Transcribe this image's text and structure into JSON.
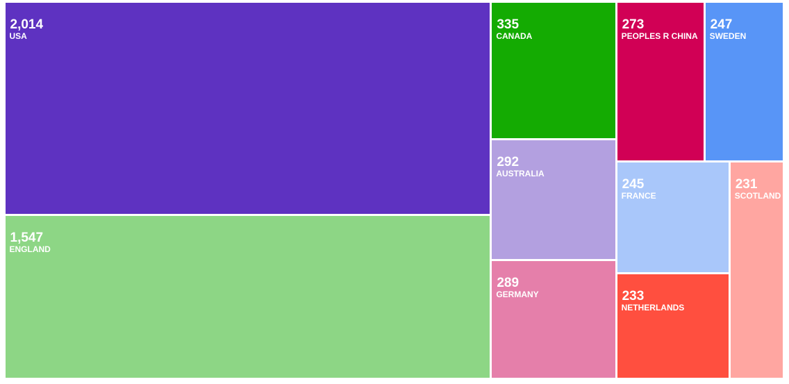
{
  "chart_data": {
    "type": "treemap",
    "items": [
      {
        "label": "USA",
        "value": 2014,
        "display_value": "2,014",
        "color": "#5e32c1"
      },
      {
        "label": "ENGLAND",
        "value": 1547,
        "display_value": "1,547",
        "color": "#8dd685"
      },
      {
        "label": "CANADA",
        "value": 335,
        "display_value": "335",
        "color": "#14ab02"
      },
      {
        "label": "AUSTRALIA",
        "value": 292,
        "display_value": "292",
        "color": "#b3a0e0"
      },
      {
        "label": "GERMANY",
        "value": 289,
        "display_value": "289",
        "color": "#e57faa"
      },
      {
        "label": "PEOPLES R CHINA",
        "value": 273,
        "display_value": "273",
        "color": "#d10055"
      },
      {
        "label": "SWEDEN",
        "value": 247,
        "display_value": "247",
        "color": "#5895f7"
      },
      {
        "label": "FRANCE",
        "value": 245,
        "display_value": "245",
        "color": "#a9c7fa"
      },
      {
        "label": "NETHERLANDS",
        "value": 233,
        "display_value": "233",
        "color": "#ff4f3f"
      },
      {
        "label": "SCOTLAND",
        "value": 231,
        "display_value": "231",
        "color": "#ffa6a1"
      }
    ]
  }
}
